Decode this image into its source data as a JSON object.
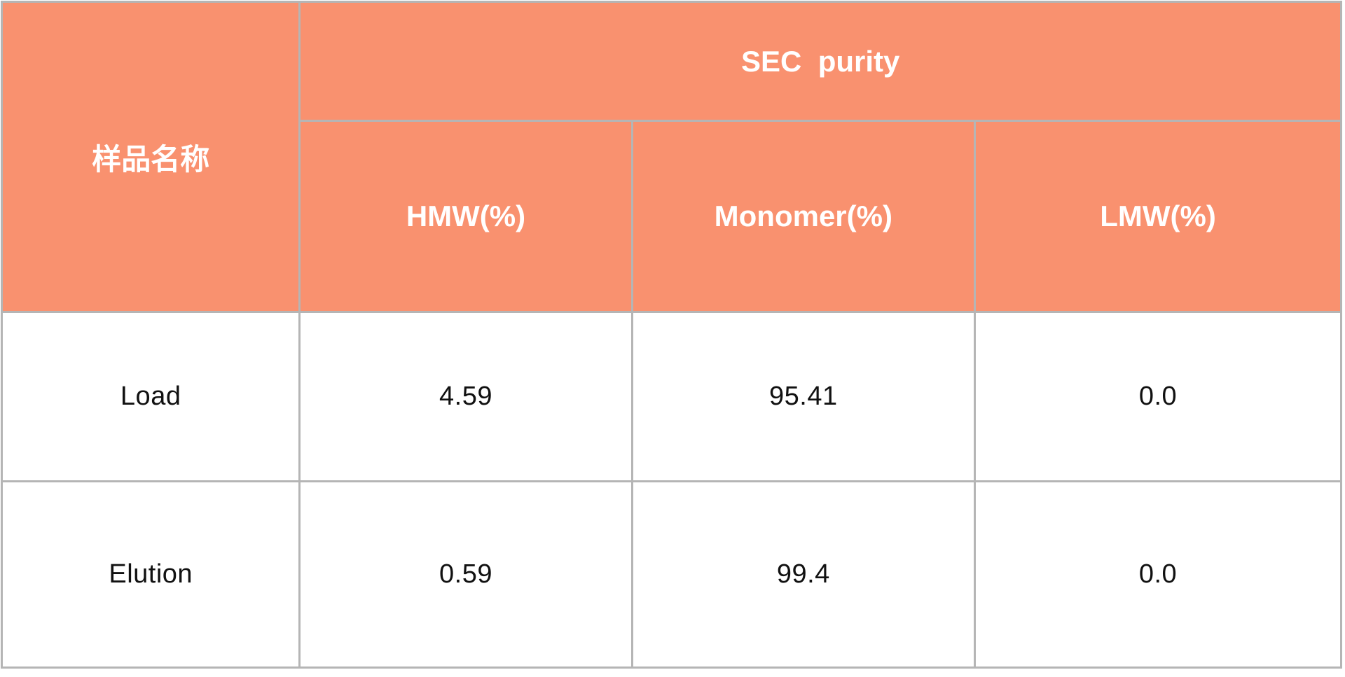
{
  "colors": {
    "header_bg": "#F9916F",
    "header_text": "#FFFFFF",
    "border": "#B5B5B5",
    "body_bg": "#FFFFFF",
    "body_text": "#111111"
  },
  "table": {
    "corner_header": "样品名称",
    "group_header": "SEC  purity",
    "sub_headers": [
      "HMW(%)",
      "Monomer(%)",
      "LMW(%)"
    ],
    "rows": [
      {
        "sample": "Load",
        "hmw": "4.59",
        "monomer": "95.41",
        "lmw": "0.0"
      },
      {
        "sample": "Elution",
        "hmw": "0.59",
        "monomer": "99.4",
        "lmw": "0.0"
      }
    ]
  },
  "chart_data": {
    "type": "table",
    "title": "SEC purity",
    "columns": [
      "样品名称",
      "HMW(%)",
      "Monomer(%)",
      "LMW(%)"
    ],
    "column_groups": [
      {
        "label": "SEC purity",
        "spans": [
          "HMW(%)",
          "Monomer(%)",
          "LMW(%)"
        ]
      }
    ],
    "rows": [
      [
        "Load",
        4.59,
        95.41,
        0.0
      ],
      [
        "Elution",
        0.59,
        99.4,
        0.0
      ]
    ]
  }
}
